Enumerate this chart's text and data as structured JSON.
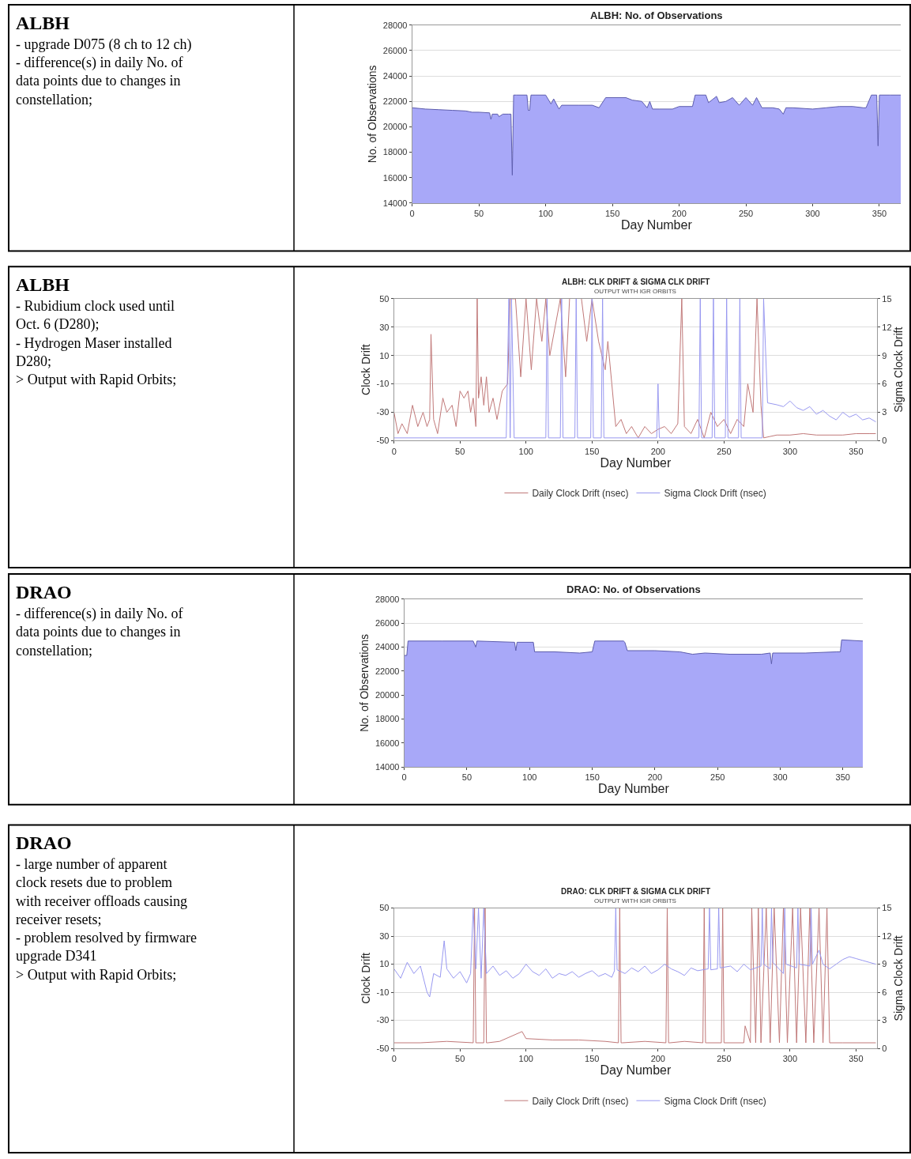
{
  "chart_data": [
    {
      "type": "other",
      "title": "ALBH",
      "annotations": [
        "- upgrade D075 (8 ch to 12 ch)",
        "- difference(s) in daily No. of data points due to changes in constellation;"
      ]
    },
    {
      "type": "area",
      "title": "ALBH: No. of Observations",
      "xlabel": "Day Number",
      "ylabel": "No. of Observations",
      "xlim": [
        0,
        366
      ],
      "xticks": [
        0,
        50,
        100,
        150,
        200,
        250,
        300,
        350
      ],
      "ylim": [
        14000,
        28000
      ],
      "yticks": [
        14000,
        16000,
        18000,
        20000,
        22000,
        24000,
        26000,
        28000
      ],
      "grid": "y",
      "legend": false,
      "series": [
        {
          "color": "#a8a8f8",
          "x": [
            0,
            10,
            20,
            30,
            40,
            45,
            50,
            58,
            59,
            60,
            64,
            65,
            68,
            72,
            74,
            75,
            76,
            78,
            86,
            87,
            88,
            89,
            92,
            100,
            104,
            106,
            110,
            112,
            125,
            135,
            140,
            145,
            160,
            165,
            172,
            176,
            178,
            180,
            185,
            195,
            200,
            210,
            212,
            220,
            222,
            228,
            230,
            235,
            240,
            245,
            250,
            255,
            258,
            262,
            270,
            275,
            278,
            280,
            285,
            300,
            310,
            320,
            330,
            338,
            340,
            344,
            348,
            349,
            350,
            358,
            366
          ],
          "values": [
            21500,
            21400,
            21350,
            21300,
            21250,
            21150,
            21150,
            21100,
            20600,
            21000,
            21000,
            20800,
            21000,
            21000,
            21000,
            16200,
            22500,
            22500,
            22500,
            21300,
            21300,
            22500,
            22500,
            22500,
            21800,
            22200,
            21400,
            21700,
            21700,
            21700,
            21500,
            22300,
            22300,
            22100,
            22000,
            21500,
            22000,
            21400,
            21400,
            21400,
            21600,
            21600,
            22500,
            22500,
            21900,
            22400,
            21900,
            22000,
            22300,
            21700,
            22300,
            21700,
            22300,
            21500,
            21500,
            21400,
            21000,
            21500,
            21500,
            21400,
            21500,
            21600,
            21600,
            21500,
            21500,
            22500,
            22500,
            18500,
            22500,
            22500,
            22500
          ]
        }
      ]
    },
    {
      "type": "other",
      "title": "ALBH",
      "annotations": [
        "- Rubidium clock used until Oct. 6 (D280);",
        "- Hydrogen Maser installed D280;",
        "> Output with Rapid Orbits;"
      ]
    },
    {
      "type": "line",
      "title": "ALBH: CLK DRIFT & SIGMA CLK DRIFT",
      "subtitle": "OUTPUT WITH IGR ORBITS",
      "xlabel": "Day Number",
      "ylabel": "Clock Drift",
      "y2label": "Sigma Clock Drift",
      "xlim": [
        0,
        366
      ],
      "xticks": [
        0,
        50,
        100,
        150,
        200,
        250,
        300,
        350
      ],
      "ylim": [
        -50,
        50
      ],
      "yticks": [
        -50,
        -30,
        -10,
        10,
        30,
        50
      ],
      "y2lim": [
        0,
        15
      ],
      "y2ticks": [
        0,
        3,
        6,
        9,
        12,
        15
      ],
      "grid": "y",
      "legend": "bottom",
      "marker": "none",
      "series": [
        {
          "name": "Daily Clock Drift (nsec)",
          "color": "#c07878",
          "x": [
            0,
            3,
            6,
            10,
            14,
            18,
            22,
            25,
            27,
            28,
            30,
            33,
            37,
            40,
            44,
            47,
            50,
            53,
            56,
            58,
            60,
            62,
            63,
            64,
            66,
            68,
            70,
            72,
            75,
            78,
            82,
            86,
            88,
            92,
            96,
            100,
            104,
            108,
            112,
            115,
            118,
            122,
            126,
            130,
            133,
            138,
            142,
            146,
            150,
            155,
            160,
            162,
            165,
            168,
            172,
            176,
            180,
            185,
            190,
            195,
            200,
            205,
            210,
            215,
            218,
            220,
            225,
            230,
            235,
            240,
            245,
            250,
            255,
            260,
            265,
            268,
            272,
            275,
            278,
            280,
            285,
            290,
            300,
            310,
            320,
            330,
            340,
            350,
            360,
            365
          ],
          "values": [
            -30,
            -45,
            -38,
            -45,
            -25,
            -40,
            -30,
            -40,
            -35,
            25,
            -35,
            -45,
            -20,
            -30,
            -25,
            -40,
            -15,
            -20,
            -15,
            -30,
            -20,
            -40,
            50,
            -20,
            -5,
            -25,
            -5,
            -30,
            -20,
            -35,
            -15,
            -10,
            50,
            50,
            -5,
            50,
            0,
            50,
            20,
            50,
            10,
            30,
            50,
            -5,
            50,
            null,
            50,
            20,
            50,
            20,
            0,
            20,
            -10,
            -40,
            -35,
            -45,
            -40,
            -48,
            -40,
            -45,
            -42,
            -40,
            -45,
            -38,
            50,
            -40,
            -45,
            -35,
            -48,
            -30,
            -40,
            -35,
            -45,
            -35,
            -40,
            -10,
            -30,
            50,
            -25,
            -48,
            -47,
            -46,
            -46,
            -45,
            -46,
            -46,
            -46,
            -45,
            -45,
            -45
          ]
        },
        {
          "name": "Sigma Clock Drift (nsec)",
          "color": "#9898f0",
          "axis": "y2",
          "x": [
            0,
            85,
            87,
            88,
            89,
            91,
            115,
            116,
            117,
            126,
            127,
            128,
            137,
            138,
            139,
            149,
            150,
            151,
            157,
            158,
            159,
            199,
            200,
            201,
            231,
            232,
            233,
            241,
            242,
            243,
            251,
            252,
            253,
            261,
            262,
            263,
            279,
            280,
            283,
            290,
            295,
            300,
            305,
            310,
            315,
            320,
            325,
            330,
            335,
            340,
            345,
            350,
            355,
            360,
            365
          ],
          "values": [
            0.3,
            0.3,
            15,
            0.3,
            15,
            0.3,
            0.3,
            15,
            0.3,
            0.3,
            15,
            0.3,
            0.3,
            15,
            0.3,
            0.3,
            15,
            0.3,
            0.3,
            15,
            0.3,
            0.3,
            6,
            0.3,
            0.3,
            15,
            0.3,
            0.3,
            15,
            0.3,
            0.3,
            15,
            0.3,
            0.3,
            15,
            0.3,
            0.3,
            15,
            4.0,
            3.8,
            3.6,
            4.2,
            3.5,
            3.2,
            3.6,
            2.8,
            3.2,
            2.6,
            2.2,
            3.0,
            2.5,
            2.8,
            2.2,
            2.4,
            2.0
          ]
        }
      ]
    },
    {
      "type": "other",
      "title": "DRAO",
      "annotations": [
        "- difference(s) in daily No. of data points due to changes in constellation;"
      ]
    },
    {
      "type": "area",
      "title": "DRAO: No. of Observations",
      "xlabel": "Day Number",
      "ylabel": "No. of Observations",
      "xlim": [
        0,
        366
      ],
      "xticks": [
        0,
        50,
        100,
        150,
        200,
        250,
        300,
        350
      ],
      "ylim": [
        14000,
        28000
      ],
      "yticks": [
        14000,
        16000,
        18000,
        20000,
        22000,
        24000,
        26000,
        28000
      ],
      "grid": "y",
      "legend": false,
      "series": [
        {
          "color": "#a8a8f8",
          "x": [
            0,
            2,
            3,
            30,
            55,
            57,
            58,
            88,
            89,
            90,
            103,
            104,
            120,
            140,
            150,
            152,
            153,
            175,
            176,
            178,
            200,
            220,
            230,
            240,
            260,
            285,
            292,
            293,
            294,
            320,
            345,
            348,
            349,
            366
          ],
          "values": [
            23300,
            23300,
            24500,
            24500,
            24500,
            24000,
            24500,
            24400,
            23700,
            24400,
            24400,
            23600,
            23600,
            23500,
            23600,
            24500,
            24500,
            24500,
            24400,
            23700,
            23700,
            23600,
            23400,
            23500,
            23400,
            23400,
            23500,
            22600,
            23500,
            23500,
            23600,
            23600,
            24600,
            24500
          ]
        }
      ]
    },
    {
      "type": "other",
      "title": "DRAO",
      "annotations": [
        "- large number of apparent clock resets due to problem with receiver offloads causing receiver resets;",
        "- problem resolved by firmware upgrade D341",
        "> Output with Rapid Orbits;"
      ]
    },
    {
      "type": "line",
      "title": "DRAO: CLK DRIFT & SIGMA CLK DRIFT",
      "subtitle": "OUTPUT WITH IGR ORBITS",
      "xlabel": "Day Number",
      "ylabel": "Clock Drift",
      "y2label": "Sigma Clock Drift",
      "xlim": [
        0,
        366
      ],
      "xticks": [
        0,
        50,
        100,
        150,
        200,
        250,
        300,
        350
      ],
      "ylim": [
        -50,
        50
      ],
      "yticks": [
        -50,
        -30,
        -10,
        10,
        30,
        50
      ],
      "y2lim": [
        0,
        15
      ],
      "y2ticks": [
        0,
        3,
        6,
        9,
        12,
        15
      ],
      "grid": "y",
      "legend": "bottom",
      "marker": "none",
      "series": [
        {
          "name": "Daily Clock Drift (nsec)",
          "color": "#c07878",
          "x": [
            0,
            20,
            40,
            60,
            61,
            62,
            63,
            68,
            69,
            70,
            71,
            80,
            97,
            100,
            120,
            140,
            160,
            170,
            171,
            172,
            173,
            190,
            206,
            207,
            208,
            209,
            220,
            234,
            235,
            236,
            237,
            248,
            249,
            250,
            251,
            265,
            266,
            270,
            271,
            274,
            276,
            278,
            282,
            285,
            288,
            292,
            295,
            298,
            302,
            305,
            308,
            312,
            315,
            318,
            322,
            325,
            328,
            330,
            340,
            365
          ],
          "values": [
            -46,
            -46,
            -45,
            -46,
            50,
            -46,
            -46,
            -46,
            50,
            -46,
            -46,
            -45,
            -38,
            -43,
            -44,
            -44,
            -45,
            -46,
            50,
            -46,
            -46,
            -45,
            -46,
            50,
            -46,
            -46,
            -45,
            -46,
            50,
            -46,
            -46,
            -46,
            50,
            -46,
            -46,
            -46,
            -34,
            -46,
            50,
            -46,
            50,
            -46,
            50,
            -46,
            50,
            -46,
            50,
            -46,
            50,
            -46,
            50,
            -46,
            50,
            -46,
            50,
            -46,
            50,
            -46,
            -46,
            -46
          ]
        },
        {
          "name": "Sigma Clock Drift (nsec)",
          "color": "#9898f0",
          "axis": "y2",
          "x": [
            0,
            5,
            10,
            15,
            20,
            25,
            27,
            30,
            35,
            38,
            40,
            45,
            50,
            55,
            58,
            60,
            62,
            64,
            66,
            68,
            70,
            75,
            80,
            85,
            90,
            95,
            100,
            105,
            110,
            115,
            120,
            125,
            130,
            135,
            140,
            145,
            150,
            155,
            160,
            165,
            167,
            168,
            169,
            175,
            180,
            185,
            190,
            195,
            200,
            205,
            210,
            215,
            220,
            225,
            230,
            238,
            239,
            240,
            245,
            246,
            247,
            255,
            260,
            265,
            270,
            278,
            279,
            280,
            285,
            286,
            287,
            295,
            296,
            297,
            305,
            306,
            307,
            315,
            316,
            317,
            322,
            325,
            330,
            335,
            340,
            345,
            350,
            355,
            360,
            365
          ],
          "values": [
            8.5,
            7.5,
            9.2,
            8.0,
            8.8,
            6.0,
            5.5,
            8.0,
            7.6,
            11.5,
            8.5,
            7.5,
            8.2,
            7.0,
            8.0,
            15,
            8.5,
            15,
            7.5,
            15,
            8.0,
            8.8,
            7.8,
            8.3,
            7.5,
            8.0,
            9.0,
            8.2,
            7.8,
            8.5,
            7.5,
            8.0,
            7.8,
            8.2,
            7.6,
            8.0,
            8.3,
            7.7,
            8.0,
            7.6,
            8.3,
            15,
            8.4,
            8.0,
            8.6,
            8.2,
            8.8,
            8.0,
            8.4,
            9.0,
            8.5,
            8.2,
            7.8,
            8.6,
            8.3,
            8.5,
            15,
            8.4,
            8.5,
            15,
            8.6,
            8.8,
            8.2,
            9.0,
            8.4,
            8.8,
            15,
            9.0,
            8.5,
            15,
            9.2,
            8.0,
            15,
            9.0,
            8.6,
            15,
            9.0,
            8.8,
            15,
            9.0,
            10.5,
            9.0,
            8.5,
            9.0,
            9.5,
            9.8,
            9.6,
            9.4,
            9.2,
            9.0
          ]
        }
      ]
    }
  ]
}
